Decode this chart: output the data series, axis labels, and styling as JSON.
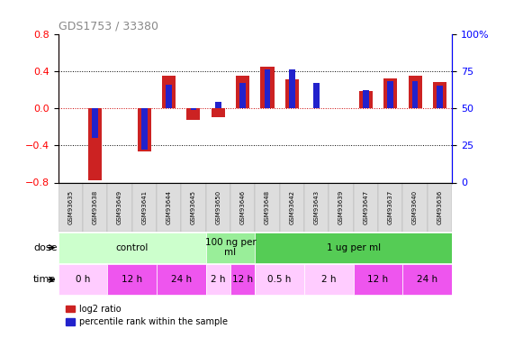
{
  "title": "GDS1753 / 33380",
  "samples": [
    "GSM93635",
    "GSM93638",
    "GSM93649",
    "GSM93641",
    "GSM93644",
    "GSM93645",
    "GSM93650",
    "GSM93646",
    "GSM93648",
    "GSM93642",
    "GSM93643",
    "GSM93639",
    "GSM93647",
    "GSM93637",
    "GSM93640",
    "GSM93636"
  ],
  "log2_ratio": [
    0.0,
    -0.78,
    0.0,
    -0.47,
    0.35,
    -0.13,
    -0.1,
    0.35,
    0.45,
    0.31,
    0.0,
    0.0,
    0.18,
    0.32,
    0.35,
    0.28
  ],
  "percentile": [
    50,
    30,
    50,
    22,
    66,
    49,
    54,
    67,
    76,
    76,
    67,
    50,
    62,
    68,
    68,
    65
  ],
  "red_color": "#cc2222",
  "blue_color": "#2222cc",
  "ylim_left": [
    -0.8,
    0.8
  ],
  "ylim_right": [
    0,
    100
  ],
  "yticks_left": [
    -0.8,
    -0.4,
    0.0,
    0.4,
    0.8
  ],
  "yticks_right": [
    0,
    25,
    50,
    75,
    100
  ],
  "dose_groups": [
    {
      "label": "control",
      "start": 0,
      "end": 6,
      "color": "#ccffcc"
    },
    {
      "label": "100 ng per\nml",
      "start": 6,
      "end": 8,
      "color": "#99ee99"
    },
    {
      "label": "1 ug per ml",
      "start": 8,
      "end": 16,
      "color": "#55cc55"
    }
  ],
  "time_groups": [
    {
      "label": "0 h",
      "start": 0,
      "end": 2,
      "color": "#ffccff"
    },
    {
      "label": "12 h",
      "start": 2,
      "end": 4,
      "color": "#ee55ee"
    },
    {
      "label": "24 h",
      "start": 4,
      "end": 6,
      "color": "#ee55ee"
    },
    {
      "label": "2 h",
      "start": 6,
      "end": 7,
      "color": "#ffccff"
    },
    {
      "label": "12 h",
      "start": 7,
      "end": 8,
      "color": "#ee55ee"
    },
    {
      "label": "0.5 h",
      "start": 8,
      "end": 10,
      "color": "#ffccff"
    },
    {
      "label": "2 h",
      "start": 10,
      "end": 12,
      "color": "#ffccff"
    },
    {
      "label": "12 h",
      "start": 12,
      "end": 14,
      "color": "#ee55ee"
    },
    {
      "label": "24 h",
      "start": 14,
      "end": 16,
      "color": "#ee55ee"
    }
  ],
  "dose_label": "dose",
  "time_label": "time",
  "legend_red": "log2 ratio",
  "legend_blue": "percentile rank within the sample",
  "xtick_bg": "#dddddd"
}
